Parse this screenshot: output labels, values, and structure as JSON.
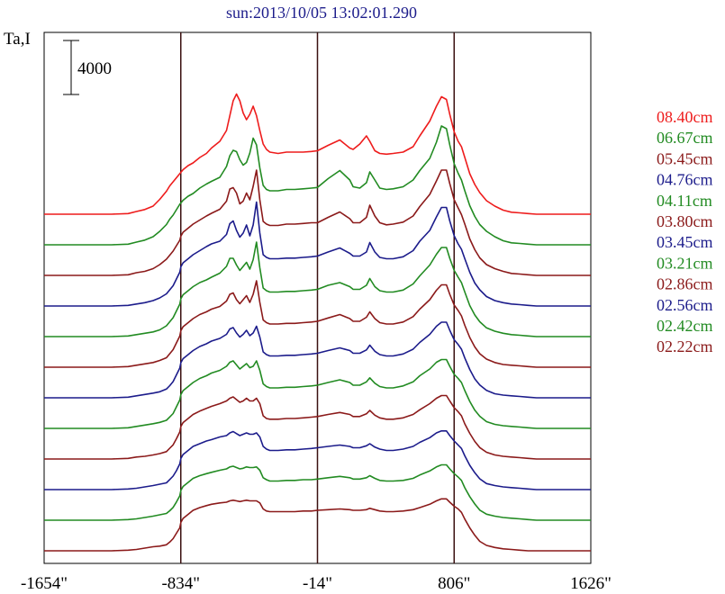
{
  "chart_data": {
    "type": "line",
    "title": "sun:2013/10/05 13:02:01.290",
    "ylabel": "Ta,I",
    "scale_bar_label": "4000",
    "xlim": [
      -1654,
      1626
    ],
    "x_ticks": [
      {
        "value": -1654,
        "label": "-1654\""
      },
      {
        "value": -834,
        "label": "-834\""
      },
      {
        "value": -14,
        "label": "-14\""
      },
      {
        "value": 806,
        "label": "806\""
      },
      {
        "value": 1626,
        "label": "1626\""
      }
    ],
    "vertical_lines": [
      -834,
      -14,
      806
    ],
    "grid": false,
    "legend_position": "right",
    "x": [
      -1654,
      -1250,
      -1150,
      -1100,
      -1050,
      -1000,
      -960,
      -920,
      -900,
      -880,
      -860,
      -840,
      -834,
      -820,
      -790,
      -760,
      -720,
      -680,
      -650,
      -600,
      -560,
      -540,
      -520,
      -500,
      -480,
      -460,
      -440,
      -420,
      -400,
      -380,
      -360,
      -340,
      -320,
      -300,
      -250,
      -200,
      -150,
      -100,
      -50,
      -14,
      50,
      120,
      180,
      200,
      240,
      280,
      300,
      330,
      360,
      400,
      440,
      500,
      560,
      600,
      660,
      700,
      730,
      760,
      780,
      806,
      830,
      850,
      870,
      900,
      930,
      960,
      1000,
      1050,
      1100,
      1150,
      1200,
      1250,
      1300,
      1400,
      1500,
      1626
    ],
    "series": [
      {
        "name": "08.40cm",
        "color": "#ee1c1c",
        "values": [
          0,
          0,
          50,
          200,
          350,
          600,
          1100,
          1700,
          2100,
          2400,
          2700,
          3000,
          3100,
          3300,
          3600,
          3800,
          4200,
          4500,
          4900,
          5400,
          6200,
          7300,
          8400,
          8900,
          8400,
          7500,
          7000,
          7400,
          8000,
          7300,
          6200,
          5200,
          4800,
          4600,
          4500,
          4600,
          4600,
          4600,
          4650,
          4700,
          5100,
          5500,
          4900,
          4800,
          5200,
          5800,
          5400,
          4700,
          4500,
          4450,
          4500,
          4600,
          5000,
          5800,
          6900,
          8000,
          8700,
          8500,
          7400,
          6100,
          5400,
          5000,
          4200,
          3000,
          2200,
          1600,
          1000,
          600,
          300,
          150,
          100,
          50,
          0,
          0,
          0,
          0
        ]
      },
      {
        "name": "06.67cm",
        "color": "#228b22",
        "values": [
          0,
          0,
          50,
          200,
          350,
          600,
          1000,
          1500,
          1900,
          2200,
          2600,
          3000,
          3100,
          3300,
          3600,
          3800,
          4200,
          4500,
          4700,
          5000,
          5800,
          6600,
          7000,
          6900,
          6300,
          5900,
          6100,
          6800,
          7900,
          7400,
          5700,
          4400,
          4100,
          4000,
          4000,
          4100,
          4100,
          4150,
          4200,
          4250,
          4900,
          5500,
          4800,
          4300,
          4200,
          4600,
          5400,
          4800,
          4200,
          4100,
          4150,
          4300,
          4800,
          5500,
          6400,
          7600,
          8800,
          8600,
          7400,
          6000,
          5300,
          4800,
          4000,
          2900,
          2100,
          1500,
          1000,
          600,
          300,
          150,
          100,
          50,
          0,
          0,
          0,
          0
        ]
      },
      {
        "name": "05.45cm",
        "color": "#8b1a1a",
        "values": [
          0,
          0,
          50,
          200,
          300,
          500,
          800,
          1200,
          1500,
          1800,
          2200,
          2600,
          2900,
          3200,
          3500,
          3800,
          4100,
          4400,
          4600,
          4900,
          5500,
          6400,
          6500,
          6100,
          5300,
          5500,
          6100,
          5600,
          6600,
          7800,
          5600,
          4000,
          3800,
          3700,
          3700,
          3800,
          3800,
          3850,
          3900,
          3900,
          4300,
          4700,
          4200,
          3900,
          3900,
          4300,
          5200,
          4400,
          3900,
          3750,
          3800,
          3950,
          4400,
          5100,
          6000,
          7000,
          7800,
          7800,
          6800,
          5600,
          5000,
          4500,
          3800,
          2700,
          1900,
          1300,
          800,
          500,
          300,
          150,
          100,
          50,
          0,
          0,
          0,
          0
        ]
      },
      {
        "name": "04.76cm",
        "color": "#1c1c8b",
        "values": [
          0,
          0,
          50,
          150,
          250,
          400,
          600,
          900,
          1200,
          1500,
          2000,
          2500,
          2900,
          3200,
          3500,
          3800,
          4100,
          4400,
          4600,
          4800,
          5300,
          6100,
          6300,
          5600,
          5100,
          5400,
          6000,
          5200,
          6000,
          7700,
          5400,
          3800,
          3600,
          3500,
          3500,
          3550,
          3550,
          3600,
          3650,
          3700,
          4000,
          4300,
          3900,
          3700,
          3700,
          4000,
          4700,
          4000,
          3600,
          3500,
          3500,
          3650,
          4100,
          4800,
          5600,
          6600,
          7300,
          7300,
          6300,
          5200,
          4600,
          4200,
          3500,
          2500,
          1700,
          1200,
          700,
          400,
          250,
          150,
          100,
          50,
          0,
          0,
          0,
          0
        ]
      },
      {
        "name": "04.11cm",
        "color": "#228b22",
        "values": [
          0,
          0,
          50,
          150,
          250,
          350,
          500,
          800,
          1100,
          1400,
          1900,
          2400,
          2800,
          3100,
          3400,
          3700,
          4000,
          4200,
          4400,
          4700,
          5200,
          5800,
          5800,
          5300,
          4900,
          5200,
          5500,
          5000,
          5700,
          7000,
          5100,
          3600,
          3400,
          3300,
          3300,
          3350,
          3350,
          3400,
          3450,
          3500,
          3800,
          4000,
          3700,
          3500,
          3500,
          3800,
          4300,
          3700,
          3400,
          3300,
          3300,
          3450,
          3900,
          4500,
          5300,
          6100,
          6600,
          6600,
          5800,
          4900,
          4400,
          4000,
          3300,
          2300,
          1600,
          1100,
          650,
          400,
          250,
          150,
          100,
          50,
          0,
          0,
          0,
          0
        ]
      },
      {
        "name": "03.80cm",
        "color": "#8b1a1a",
        "values": [
          0,
          0,
          50,
          150,
          250,
          350,
          500,
          700,
          1000,
          1300,
          1800,
          2300,
          2700,
          3000,
          3300,
          3600,
          3900,
          4100,
          4300,
          4500,
          4900,
          5400,
          5500,
          5000,
          4700,
          5000,
          5300,
          4800,
          5400,
          6400,
          4800,
          3500,
          3300,
          3200,
          3200,
          3250,
          3250,
          3300,
          3350,
          3400,
          3650,
          3900,
          3600,
          3400,
          3400,
          3700,
          4100,
          3600,
          3300,
          3200,
          3200,
          3350,
          3750,
          4300,
          5000,
          5700,
          6100,
          6100,
          5400,
          4600,
          4200,
          3800,
          3100,
          2200,
          1500,
          1000,
          600,
          350,
          200,
          150,
          100,
          50,
          0,
          0,
          0,
          0
        ]
      },
      {
        "name": "03.45cm",
        "color": "#1c1c8b",
        "values": [
          0,
          0,
          50,
          150,
          250,
          350,
          450,
          650,
          900,
          1200,
          1700,
          2200,
          2600,
          2900,
          3200,
          3500,
          3800,
          4000,
          4200,
          4400,
          4700,
          5100,
          5200,
          4800,
          4500,
          4700,
          5000,
          4600,
          4800,
          5300,
          4500,
          3400,
          3200,
          3100,
          3100,
          3150,
          3150,
          3200,
          3250,
          3300,
          3500,
          3700,
          3500,
          3300,
          3300,
          3550,
          3900,
          3450,
          3200,
          3100,
          3100,
          3250,
          3600,
          4100,
          4700,
          5300,
          5600,
          5600,
          5000,
          4300,
          3950,
          3600,
          2950,
          2100,
          1400,
          950,
          550,
          300,
          200,
          150,
          100,
          50,
          0,
          0,
          0,
          0
        ]
      },
      {
        "name": "03.21cm",
        "color": "#228b22",
        "values": [
          0,
          0,
          50,
          150,
          250,
          350,
          450,
          600,
          850,
          1100,
          1600,
          2100,
          2500,
          2800,
          3100,
          3400,
          3700,
          3900,
          4100,
          4300,
          4600,
          4900,
          5000,
          4700,
          4400,
          4600,
          4800,
          4500,
          4600,
          5000,
          4300,
          3300,
          3100,
          3000,
          3000,
          3050,
          3050,
          3100,
          3150,
          3200,
          3400,
          3600,
          3400,
          3200,
          3200,
          3450,
          3750,
          3350,
          3100,
          3000,
          3000,
          3150,
          3450,
          3900,
          4400,
          4900,
          5100,
          5100,
          4600,
          4000,
          3700,
          3400,
          2800,
          2000,
          1350,
          900,
          500,
          300,
          200,
          150,
          100,
          50,
          0,
          0,
          0,
          0
        ]
      },
      {
        "name": "02.86cm",
        "color": "#8b1a1a",
        "values": [
          0,
          0,
          50,
          150,
          200,
          300,
          400,
          550,
          800,
          1050,
          1500,
          2000,
          2400,
          2700,
          3000,
          3300,
          3550,
          3750,
          3900,
          4100,
          4300,
          4500,
          4600,
          4400,
          4200,
          4300,
          4500,
          4300,
          4300,
          4500,
          4100,
          3200,
          3000,
          2950,
          2950,
          3000,
          3000,
          3050,
          3100,
          3150,
          3300,
          3450,
          3300,
          3150,
          3150,
          3350,
          3600,
          3250,
          3050,
          2950,
          2950,
          3050,
          3300,
          3650,
          4100,
          4500,
          4700,
          4700,
          4300,
          3800,
          3500,
          3200,
          2600,
          1900,
          1300,
          850,
          500,
          300,
          200,
          150,
          100,
          50,
          0,
          0,
          0,
          0
        ]
      },
      {
        "name": "02.56cm",
        "color": "#1c1c8b",
        "values": [
          0,
          0,
          50,
          100,
          200,
          300,
          400,
          500,
          750,
          1000,
          1400,
          1900,
          2300,
          2600,
          2900,
          3200,
          3400,
          3600,
          3700,
          3900,
          4000,
          4200,
          4300,
          4150,
          4000,
          4100,
          4200,
          4100,
          4100,
          4200,
          3900,
          3200,
          3000,
          2900,
          2900,
          2950,
          2950,
          3000,
          3050,
          3100,
          3200,
          3300,
          3200,
          3100,
          3100,
          3250,
          3400,
          3150,
          3000,
          2900,
          2900,
          3000,
          3200,
          3500,
          3850,
          4200,
          4350,
          4350,
          4000,
          3600,
          3300,
          3050,
          2500,
          1800,
          1250,
          800,
          450,
          300,
          200,
          150,
          100,
          50,
          0,
          0,
          0,
          0
        ]
      },
      {
        "name": "02.42cm",
        "color": "#228b22",
        "values": [
          0,
          0,
          50,
          100,
          200,
          300,
          400,
          500,
          700,
          950,
          1350,
          1800,
          2200,
          2500,
          2800,
          3100,
          3300,
          3450,
          3550,
          3700,
          3800,
          3950,
          4000,
          3900,
          3800,
          3850,
          3950,
          3900,
          3900,
          3950,
          3700,
          3150,
          3000,
          2900,
          2900,
          2950,
          2950,
          3000,
          3000,
          3050,
          3150,
          3250,
          3150,
          3050,
          3050,
          3150,
          3300,
          3100,
          2950,
          2900,
          2900,
          2950,
          3100,
          3350,
          3650,
          3950,
          4100,
          4100,
          3800,
          3450,
          3200,
          2950,
          2400,
          1750,
          1200,
          750,
          450,
          300,
          200,
          150,
          100,
          50,
          0,
          0,
          0,
          0
        ]
      },
      {
        "name": "02.22cm",
        "color": "#8b1a1a",
        "values": [
          0,
          0,
          50,
          100,
          200,
          300,
          350,
          450,
          650,
          900,
          1300,
          1700,
          2100,
          2400,
          2700,
          3000,
          3200,
          3350,
          3450,
          3550,
          3600,
          3700,
          3750,
          3700,
          3650,
          3700,
          3750,
          3700,
          3700,
          3700,
          3550,
          3100,
          2950,
          2900,
          2900,
          2900,
          2900,
          2950,
          2950,
          3000,
          3050,
          3100,
          3050,
          3000,
          3000,
          3050,
          3150,
          3050,
          2950,
          2900,
          2900,
          2950,
          3050,
          3200,
          3450,
          3700,
          3850,
          3850,
          3600,
          3300,
          3100,
          2850,
          2350,
          1700,
          1150,
          700,
          400,
          250,
          150,
          100,
          50,
          0,
          0,
          0,
          0,
          0
        ]
      }
    ]
  }
}
